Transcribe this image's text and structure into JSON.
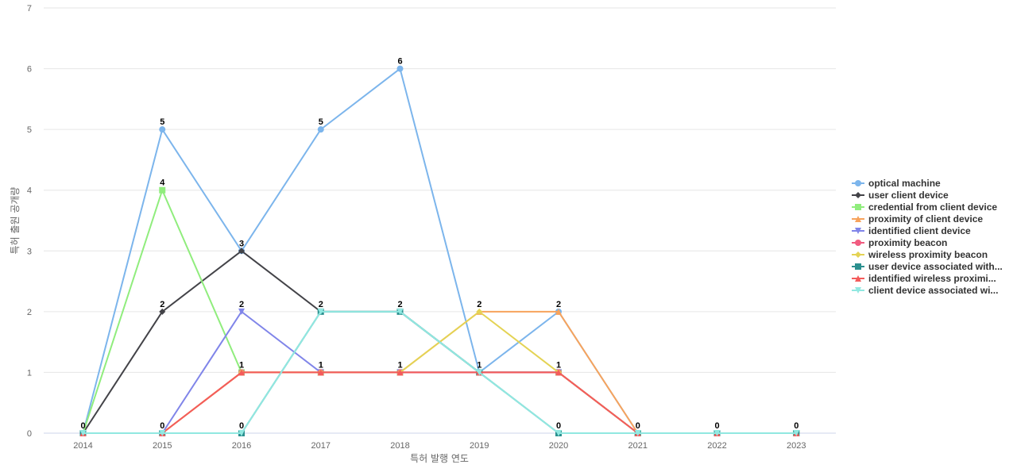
{
  "chart_data": {
    "type": "line",
    "title": "",
    "xlabel": "특허 발행 연도",
    "ylabel": "특허 출원 공개량",
    "x": [
      "2014",
      "2015",
      "2016",
      "2017",
      "2018",
      "2019",
      "2020",
      "2021",
      "2022",
      "2023"
    ],
    "ylim": [
      0,
      7
    ],
    "yticks": [
      0,
      1,
      2,
      3,
      4,
      5,
      6,
      7
    ],
    "grid": true,
    "legend_position": "right",
    "series": [
      {
        "name": "optical machine",
        "color": "#7cb5ec",
        "marker": "circle",
        "values": [
          0,
          5,
          3,
          5,
          6,
          1,
          2,
          0,
          0,
          0
        ]
      },
      {
        "name": "user client device",
        "color": "#434348",
        "marker": "diamond",
        "values": [
          0,
          2,
          3,
          2,
          2,
          1,
          1,
          0,
          0,
          0
        ]
      },
      {
        "name": "credential from client device",
        "color": "#90ed7d",
        "marker": "square",
        "values": [
          0,
          4,
          1,
          1,
          1,
          1,
          1,
          0,
          0,
          0
        ]
      },
      {
        "name": "proximity of client device",
        "color": "#f7a35c",
        "marker": "triangle",
        "values": [
          0,
          0,
          1,
          1,
          1,
          2,
          2,
          0,
          0,
          0
        ]
      },
      {
        "name": "identified client device",
        "color": "#8085e9",
        "marker": "triangle-down",
        "values": [
          0,
          0,
          2,
          1,
          1,
          1,
          1,
          0,
          0,
          0
        ]
      },
      {
        "name": "proximity beacon",
        "color": "#f15c80",
        "marker": "circle",
        "values": [
          0,
          0,
          1,
          1,
          1,
          1,
          1,
          0,
          0,
          0
        ]
      },
      {
        "name": "wireless proximity beacon",
        "color": "#e4d354",
        "marker": "diamond",
        "values": [
          0,
          0,
          1,
          1,
          1,
          2,
          1,
          0,
          0,
          0
        ]
      },
      {
        "name": "user device associated with...",
        "color": "#2b908f",
        "marker": "square",
        "values": [
          0,
          0,
          0,
          2,
          2,
          1,
          0,
          0,
          0,
          0
        ]
      },
      {
        "name": "identified wireless proximi...",
        "color": "#f45b5b",
        "marker": "triangle",
        "values": [
          0,
          0,
          1,
          1,
          1,
          1,
          1,
          0,
          0,
          0
        ]
      },
      {
        "name": "client device associated wi...",
        "color": "#91e8e1",
        "marker": "triangle-down",
        "values": [
          0,
          0,
          0,
          2,
          2,
          1,
          0,
          0,
          0,
          0
        ]
      }
    ],
    "data_labels": [
      {
        "x": "2014",
        "text": "0"
      },
      {
        "x": "2015",
        "text": "5"
      },
      {
        "x": "2015",
        "text": "4"
      },
      {
        "x": "2015",
        "text": "2"
      },
      {
        "x": "2015",
        "text": "0"
      },
      {
        "x": "2016",
        "text": "3"
      },
      {
        "x": "2016",
        "text": "2"
      },
      {
        "x": "2016",
        "text": "1"
      },
      {
        "x": "2016",
        "text": "0"
      },
      {
        "x": "2017",
        "text": "5"
      },
      {
        "x": "2017",
        "text": "2"
      },
      {
        "x": "2017",
        "text": "1"
      },
      {
        "x": "2018",
        "text": "6"
      },
      {
        "x": "2018",
        "text": "2"
      },
      {
        "x": "2018",
        "text": "1"
      },
      {
        "x": "2019",
        "text": "2"
      },
      {
        "x": "2019",
        "text": "1"
      },
      {
        "x": "2020",
        "text": "2"
      },
      {
        "x": "2020",
        "text": "1"
      },
      {
        "x": "2020",
        "text": "0"
      },
      {
        "x": "2021",
        "text": "0"
      },
      {
        "x": "2022",
        "text": "0"
      },
      {
        "x": "2023",
        "text": "0"
      }
    ]
  }
}
